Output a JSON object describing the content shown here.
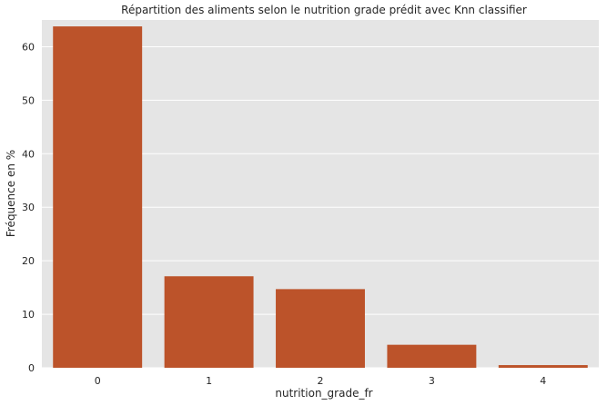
{
  "chart_data": {
    "type": "bar",
    "title": "Répartition des aliments selon le nutrition grade prédit avec Knn classifier",
    "xlabel": "nutrition_grade_fr",
    "ylabel": "Fréquence en %",
    "categories": [
      "0",
      "1",
      "2",
      "3",
      "4"
    ],
    "values": [
      63.8,
      17.1,
      14.7,
      4.3,
      0.5
    ],
    "ylim": [
      0,
      65
    ],
    "yticks": [
      "0",
      "10",
      "20",
      "30",
      "40",
      "50",
      "60"
    ],
    "grid": true,
    "legend": "none",
    "colors": {
      "bar": "#bc532a",
      "background": "#e5e5e5",
      "grid": "#ffffff"
    }
  }
}
